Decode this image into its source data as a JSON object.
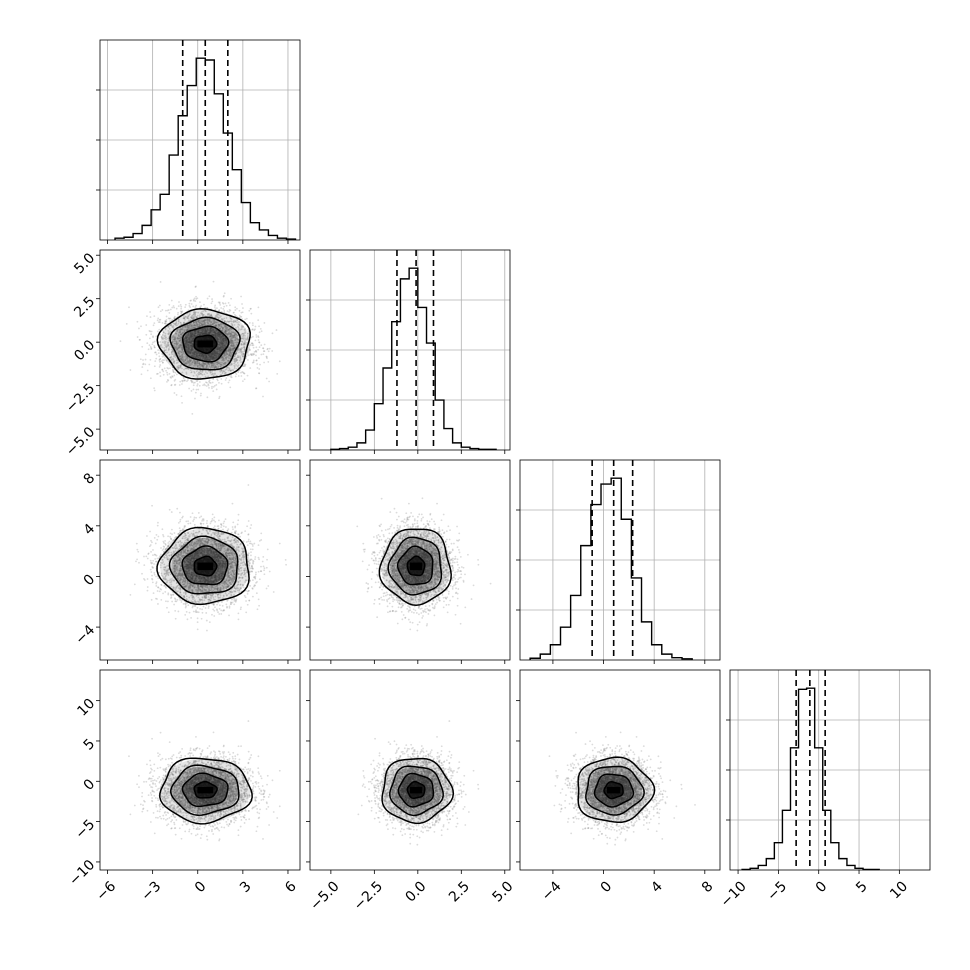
{
  "chart_data": {
    "type": "corner",
    "n_params": 4,
    "params": [
      {
        "range": [
          -6.5,
          6.8
        ],
        "ticks": [
          -6,
          -3,
          0,
          3,
          6
        ],
        "tick_labels": [
          "−6",
          "−3",
          "0",
          "3",
          "6"
        ],
        "mean": 0.5,
        "std": 1.5,
        "quantiles": [
          -1.0,
          0.5,
          2.0
        ],
        "hist_bins": [
          -5.5,
          -4.9,
          -4.3,
          -3.7,
          -3.1,
          -2.5,
          -1.9,
          -1.3,
          -0.7,
          -0.1,
          0.5,
          1.1,
          1.7,
          2.3,
          2.9,
          3.5,
          4.1,
          4.7,
          5.3,
          5.9,
          6.5
        ],
        "hist_counts": [
          2,
          3,
          7,
          16,
          33,
          50,
          93,
          136,
          169,
          199,
          197,
          160,
          117,
          77,
          41,
          19,
          11,
          5,
          2,
          1
        ]
      },
      {
        "range": [
          -6.2,
          5.3
        ],
        "ticks": [
          -5.0,
          -2.5,
          0.0,
          2.5,
          5.0
        ],
        "tick_labels": [
          "−5.0",
          "−2.5",
          "0.0",
          "2.5",
          "5.0"
        ],
        "mean": -0.1,
        "std": 1.0,
        "quantiles": [
          -1.2,
          -0.1,
          0.9
        ],
        "hist_bins": [
          -5.0,
          -4.5,
          -4.0,
          -3.5,
          -3.0,
          -2.5,
          -2.0,
          -1.5,
          -1.0,
          -0.5,
          0.0,
          0.5,
          1.0,
          1.5,
          2.0,
          2.5,
          3.0,
          3.5,
          4.0,
          4.5
        ],
        "hist_counts": [
          1,
          2,
          4,
          10,
          28,
          65,
          115,
          180,
          240,
          255,
          200,
          150,
          70,
          30,
          10,
          4,
          2,
          1,
          1
        ]
      },
      {
        "range": [
          -6.6,
          9.2
        ],
        "ticks": [
          -4,
          0,
          4,
          8
        ],
        "tick_labels": [
          "−4",
          "0",
          "4",
          "8"
        ],
        "mean": 0.8,
        "std": 1.5,
        "quantiles": [
          -0.9,
          0.8,
          2.3
        ],
        "hist_bins": [
          -5.8,
          -5.0,
          -4.2,
          -3.4,
          -2.6,
          -1.8,
          -1.0,
          -0.2,
          0.6,
          1.4,
          2.2,
          3.0,
          3.8,
          4.6,
          5.4,
          6.2,
          7.0
        ],
        "hist_counts": [
          3,
          10,
          26,
          56,
          110,
          195,
          265,
          300,
          310,
          240,
          140,
          65,
          26,
          10,
          4,
          2
        ]
      },
      {
        "range": [
          -11.0,
          13.8
        ],
        "ticks": [
          -10,
          -5,
          0,
          5,
          10
        ],
        "tick_labels": [
          "−10",
          "−5",
          "0",
          "5",
          "10"
        ],
        "mean": -1.1,
        "std": 2.0,
        "quantiles": [
          -2.8,
          -1.1,
          0.8
        ],
        "hist_bins": [
          -9.5,
          -8.5,
          -7.5,
          -6.5,
          -5.5,
          -4.5,
          -3.5,
          -2.5,
          -1.5,
          -0.5,
          0.5,
          1.5,
          2.5,
          3.5,
          4.5,
          5.5,
          6.5,
          7.5
        ],
        "hist_counts": [
          1,
          3,
          8,
          20,
          48,
          105,
          215,
          318,
          320,
          215,
          105,
          48,
          20,
          8,
          3,
          1,
          1
        ]
      }
    ],
    "scatter_points": 3500,
    "contour_levels_sigma": [
      0.5,
      1.0,
      1.5,
      2.0
    ],
    "grid": true
  },
  "colors": {
    "scatter": "#888888",
    "line": "#000000",
    "grid": "#b0b0b0",
    "density": "#000000"
  }
}
